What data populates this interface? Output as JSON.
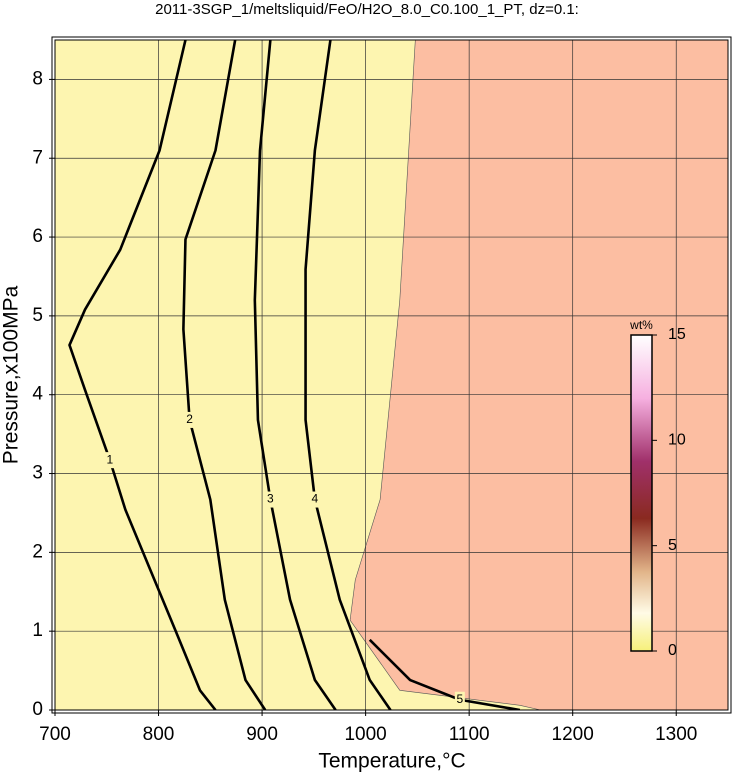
{
  "chart_data": {
    "type": "contour",
    "title": "2011-3SGP_1/meltsliquid/FeO/H2O_8.0_C0.100_1_PT, dz=0.1:",
    "x_label": "Temperature,°C",
    "y_label": "Pressure,x100MPa",
    "xlim": [
      700,
      1350
    ],
    "ylim": [
      0,
      8.5
    ],
    "xticks": [
      700,
      800,
      900,
      1000,
      1100,
      1200,
      1300
    ],
    "yticks": [
      0,
      1,
      2,
      3,
      4,
      5,
      6,
      7,
      8
    ],
    "grid": true,
    "background_color": "#fdf5b0",
    "regions": [
      {
        "color": "#fcbea2",
        "x": [
          1048,
          1033,
          1014,
          990,
          985,
          1033,
          1149,
          1169
        ],
        "y": [
          8.5,
          5.2,
          2.67,
          1.65,
          1.14,
          0.25,
          0.06,
          0
        ]
      }
    ],
    "contours": [
      {
        "label": "1",
        "x": [
          826,
          801,
          763,
          729,
          714,
          729,
          753,
          768,
          792,
          816,
          840,
          855
        ],
        "y": [
          8.5,
          7.1,
          5.84,
          5.08,
          4.63,
          4.06,
          3.17,
          2.54,
          1.78,
          1.02,
          0.25,
          0
        ]
      },
      {
        "label": "2",
        "x": [
          874,
          855,
          826,
          824,
          830,
          850,
          864,
          884,
          903
        ],
        "y": [
          8.5,
          7.1,
          5.97,
          4.83,
          3.68,
          2.67,
          1.4,
          0.38,
          0
        ]
      },
      {
        "label": "3",
        "x": [
          908,
          898,
          893,
          896,
          908,
          927,
          951,
          971
        ],
        "y": [
          8.5,
          7.1,
          5.2,
          3.68,
          2.67,
          1.4,
          0.38,
          0
        ]
      },
      {
        "label": "4",
        "x": [
          966,
          951,
          942,
          942,
          951,
          975,
          1004,
          1024
        ],
        "y": [
          8.5,
          7.1,
          5.59,
          3.68,
          2.67,
          1.4,
          0.38,
          0
        ]
      },
      {
        "label": "5",
        "x": [
          1004,
          1043,
          1091,
          1149
        ],
        "y": [
          0.89,
          0.38,
          0.13,
          0
        ]
      }
    ],
    "colorbar": {
      "label": "wt%",
      "lim": [
        0,
        15
      ],
      "ticks": [
        0,
        5,
        10,
        15
      ]
    }
  }
}
